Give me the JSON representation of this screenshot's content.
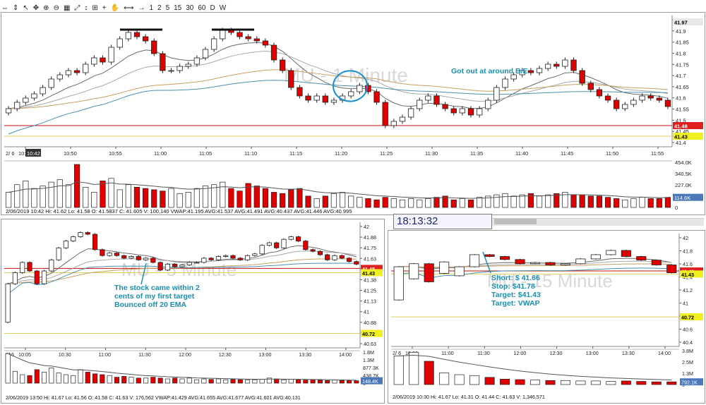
{
  "toolbar": {
    "items": [
      "⇔",
      "⇕",
      "↖",
      "✥",
      "⊕",
      "⊖",
      "▦",
      "⤢",
      "↕",
      "⊞",
      "+",
      "✋",
      "⟷",
      "→"
    ],
    "periods": [
      "1",
      "2",
      "5",
      "15",
      "30",
      "60",
      "D",
      "W"
    ]
  },
  "clock": "18:13:32",
  "colors": {
    "up": "#ffffff",
    "down": "#e00000",
    "ema_gray": "#8a8a8a",
    "ema_tan": "#c8a060",
    "vwap": "#4a90b0",
    "target_line": "#e0d060",
    "red_line": "#c01010",
    "annot": "#1a8fb0"
  },
  "panels": [
    {
      "id": "one-minute",
      "watermark": "MU - 1 Minute",
      "corner_label": "2/ 6",
      "time_badge": "10:42",
      "x_labels": [
        "10:45",
        "10:50",
        "10:55",
        "11:00",
        "11:05",
        "11:10",
        "11:15",
        "11:20",
        "11:25",
        "11:30",
        "11:35",
        "11:40",
        "11:45",
        "11:50",
        "11:55"
      ],
      "y_ticks": [
        "42.",
        "41.9",
        "41.85",
        "41.8",
        "41.75",
        "41.7",
        "41.65",
        "41.6",
        "41.55",
        "41.5",
        "41.45",
        "41.4"
      ],
      "price_badges": [
        {
          "text": "41.97",
          "value": 41.97,
          "bg": "#e8e8e8",
          "fg": "#000"
        },
        {
          "text": "41.48",
          "value": 41.48,
          "bg": "#e02020",
          "fg": "#fff"
        },
        {
          "text": "41.43",
          "value": 41.43,
          "bg": "#f0f020",
          "fg": "#000"
        }
      ],
      "vol_ticks": [
        "454.0K",
        "340.5K",
        "227.0K",
        "113.5K",
        "0"
      ],
      "vol_badge": "114.6K",
      "info": "2/06/2019 10:42   Hi: 41.62   Lo: 41.58   O: 41.5837   C: 41.605   V: 100,140  VWAP:41.195  AVG:41.537  AVG:41.491  AVG:40.437  AVG:41.446  AVG:40.995",
      "annotation": "Got out at around B/E"
    },
    {
      "id": "five-minute",
      "watermark": "MU - 5 Minute",
      "corner_label": "2/ 6",
      "x_labels": [
        "10:05",
        "10:30",
        "11:00",
        "11:30",
        "12:00",
        "12:30",
        "13:00",
        "13:30",
        "14:00"
      ],
      "y_ticks": [
        "42",
        "41.88",
        "41.75",
        "41.63",
        "41.5",
        "41.38",
        "41.25",
        "41.13",
        "41",
        "40.88",
        "40.75",
        "40.63"
      ],
      "price_badges": [
        {
          "text": "41.48",
          "value": 41.48,
          "bg": "#e02020",
          "fg": "#fff"
        },
        {
          "text": "41.43",
          "value": 41.43,
          "bg": "#f0f020",
          "fg": "#000"
        },
        {
          "text": "40.72",
          "value": 40.72,
          "bg": "#f0f020",
          "fg": "#000"
        }
      ],
      "vol_ticks": [
        "1.8M",
        "1.3M",
        "877.3K",
        "438.7K",
        "0"
      ],
      "vol_badge": "148.4K",
      "info": "2/06/2019 13:50   Hi: 41.67   Lo: 41.56   O: 41.58   C: 41.63   V: 176,562  VWAP:41.429  AVG:41.655  AVG:41.677  AVG:41.601  AVG:40.131",
      "annotation": [
        "The stock came within 2",
        "cents of my first target",
        "Bounced off 20 EMA"
      ]
    },
    {
      "id": "fifteen-minute",
      "watermark": "MU - 15 Minute",
      "corner_label": "2/ 6",
      "x_labels": [
        "10:30",
        "11:00",
        "11:30",
        "12:00",
        "12:30",
        "13:00",
        "13:30",
        "14:00"
      ],
      "y_ticks": [
        "42",
        "41.8",
        "41.6",
        "41.4",
        "41.2",
        "41",
        "40.8",
        "40.6",
        "40.4"
      ],
      "price_badges": [
        {
          "text": "41.48",
          "value": 41.48,
          "bg": "#e02020",
          "fg": "#fff"
        },
        {
          "text": "41.43",
          "value": 41.43,
          "bg": "#f0f020",
          "fg": "#000"
        },
        {
          "text": "40.72",
          "value": 40.72,
          "bg": "#f0f020",
          "fg": "#000"
        }
      ],
      "vol_ticks": [
        "3.8M",
        "2.5M",
        "1.3M",
        "0"
      ],
      "vol_badge": "792.1K",
      "info": "2/06/2019 10:30   Hi: 41.67   Lo: 41.31   O: 41.44   C: 41.63   V: 1,346,571",
      "annotation": [
        "Short: $ 41.66",
        "Stop: $41.78",
        "Target: $41.43",
        "Target: VWAP"
      ]
    }
  ],
  "chart_data": [
    {
      "type": "candlestick",
      "title": "MU - 1 Minute",
      "x": [
        "10:42",
        "10:43",
        "10:44",
        "10:45",
        "10:46",
        "10:47",
        "10:48",
        "10:49",
        "10:50",
        "10:51",
        "10:52",
        "10:53",
        "10:54",
        "10:55",
        "10:56",
        "10:57",
        "10:58",
        "10:59",
        "11:00",
        "11:01",
        "11:02",
        "11:03",
        "11:04",
        "11:05",
        "11:06",
        "11:07",
        "11:08",
        "11:09",
        "11:10",
        "11:11",
        "11:12",
        "11:13",
        "11:14",
        "11:15",
        "11:16",
        "11:17",
        "11:18",
        "11:19",
        "11:20",
        "11:21",
        "11:22",
        "11:23",
        "11:24",
        "11:25",
        "11:26",
        "11:27",
        "11:28",
        "11:29",
        "11:30",
        "11:31",
        "11:32",
        "11:33",
        "11:34",
        "11:35",
        "11:36",
        "11:37",
        "11:38",
        "11:39",
        "11:40",
        "11:41",
        "11:42",
        "11:43",
        "11:44",
        "11:45",
        "11:46",
        "11:47",
        "11:48",
        "11:49",
        "11:50",
        "11:51",
        "11:52",
        "11:53",
        "11:54",
        "11:55",
        "11:56",
        "11:57",
        "11:58",
        "11:59"
      ],
      "open": [
        41.54,
        41.56,
        41.59,
        41.61,
        41.63,
        41.66,
        41.7,
        41.72,
        41.74,
        41.73,
        41.77,
        41.8,
        41.78,
        41.85,
        41.89,
        41.92,
        41.9,
        41.88,
        41.82,
        41.74,
        41.74,
        41.76,
        41.77,
        41.8,
        41.84,
        41.89,
        41.93,
        41.92,
        41.9,
        41.89,
        41.88,
        41.86,
        41.79,
        41.74,
        41.66,
        41.62,
        41.6,
        41.62,
        41.59,
        41.6,
        41.62,
        41.64,
        41.67,
        41.64,
        41.59,
        41.48,
        41.5,
        41.52,
        41.56,
        41.6,
        41.62,
        41.58,
        41.56,
        41.54,
        41.56,
        41.53,
        41.56,
        41.6,
        41.66,
        41.7,
        41.72,
        41.74,
        41.73,
        41.75,
        41.77,
        41.76,
        41.79,
        41.74,
        41.68,
        41.65,
        41.62,
        41.6,
        41.56,
        41.58,
        41.6,
        41.62,
        41.61,
        41.6
      ],
      "close": [
        41.56,
        41.59,
        41.61,
        41.63,
        41.66,
        41.7,
        41.72,
        41.74,
        41.73,
        41.77,
        41.8,
        41.78,
        41.85,
        41.89,
        41.92,
        41.9,
        41.88,
        41.82,
        41.74,
        41.74,
        41.76,
        41.77,
        41.8,
        41.84,
        41.89,
        41.93,
        41.92,
        41.9,
        41.89,
        41.88,
        41.86,
        41.79,
        41.74,
        41.66,
        41.62,
        41.6,
        41.62,
        41.59,
        41.6,
        41.62,
        41.64,
        41.67,
        41.64,
        41.59,
        41.48,
        41.5,
        41.52,
        41.56,
        41.6,
        41.62,
        41.58,
        41.56,
        41.54,
        41.56,
        41.53,
        41.56,
        41.6,
        41.66,
        41.7,
        41.72,
        41.74,
        41.73,
        41.75,
        41.77,
        41.76,
        41.79,
        41.74,
        41.68,
        41.65,
        41.62,
        41.6,
        41.56,
        41.58,
        41.6,
        41.62,
        41.61,
        41.6,
        41.57
      ],
      "volume": [
        120,
        180,
        210,
        150,
        170,
        200,
        220,
        180,
        340,
        160,
        120,
        210,
        230,
        140,
        180,
        160,
        150,
        140,
        130,
        150,
        110,
        120,
        150,
        170,
        180,
        200,
        150,
        130,
        190,
        170,
        150,
        120,
        110,
        140,
        150,
        90,
        70,
        90,
        110,
        120,
        90,
        80,
        70,
        60,
        80,
        70,
        60,
        70,
        60,
        70,
        80,
        90,
        60,
        70,
        60,
        80,
        90,
        100,
        110,
        90,
        100,
        110,
        90,
        100,
        110,
        120,
        100,
        100,
        90,
        90,
        80,
        70,
        60,
        70,
        80,
        70,
        70,
        80
      ],
      "series": [],
      "ylim": [
        41.4,
        42.0
      ]
    },
    {
      "type": "candlestick",
      "title": "MU - 5 Minute",
      "x": [
        "10:05",
        "10:10",
        "10:15",
        "10:20",
        "10:25",
        "10:30",
        "10:35",
        "10:40",
        "10:45",
        "10:50",
        "10:55",
        "11:00",
        "11:05",
        "11:10",
        "11:15",
        "11:20",
        "11:25",
        "11:30",
        "11:35",
        "11:40",
        "11:45",
        "11:50",
        "11:55",
        "12:00",
        "12:05",
        "12:10",
        "12:15",
        "12:20",
        "12:25",
        "12:30",
        "12:35",
        "12:40",
        "12:45",
        "12:50",
        "12:55",
        "13:00",
        "13:05",
        "13:10",
        "13:15",
        "13:20",
        "13:25",
        "13:30",
        "13:35",
        "13:40",
        "13:45",
        "13:50",
        "13:55",
        "14:00",
        "14:05"
      ],
      "open": [
        40.85,
        41.3,
        41.43,
        41.55,
        41.45,
        41.3,
        41.45,
        41.58,
        41.72,
        41.8,
        41.85,
        41.9,
        41.88,
        41.7,
        41.63,
        41.66,
        41.63,
        41.6,
        41.62,
        41.58,
        41.6,
        41.55,
        41.46,
        41.53,
        41.5,
        41.52,
        41.55,
        41.55,
        41.6,
        41.58,
        41.62,
        41.63,
        41.6,
        41.58,
        41.63,
        41.65,
        41.75,
        41.78,
        41.72,
        41.82,
        41.85,
        41.8,
        41.7,
        41.68,
        41.64,
        41.58,
        41.63,
        41.6,
        41.56
      ],
      "close": [
        41.3,
        41.43,
        41.55,
        41.45,
        41.3,
        41.45,
        41.58,
        41.72,
        41.8,
        41.85,
        41.9,
        41.88,
        41.7,
        41.63,
        41.66,
        41.63,
        41.6,
        41.62,
        41.58,
        41.6,
        41.55,
        41.46,
        41.53,
        41.5,
        41.52,
        41.55,
        41.55,
        41.6,
        41.58,
        41.62,
        41.63,
        41.6,
        41.58,
        41.63,
        41.65,
        41.75,
        41.78,
        41.72,
        41.82,
        41.85,
        41.8,
        41.7,
        41.68,
        41.64,
        41.58,
        41.63,
        41.6,
        41.56,
        41.53
      ],
      "volume": [
        1.75,
        0.7,
        0.5,
        0.45,
        0.8,
        0.65,
        0.9,
        0.6,
        0.5,
        0.45,
        0.8,
        0.65,
        0.55,
        0.5,
        0.45,
        0.35,
        0.4,
        0.35,
        0.3,
        0.3,
        0.35,
        0.3,
        0.25,
        0.3,
        0.25,
        0.3,
        0.2,
        0.25,
        0.22,
        0.25,
        0.2,
        0.22,
        0.2,
        0.18,
        0.2,
        0.22,
        0.3,
        0.25,
        0.2,
        0.22,
        0.2,
        0.18,
        0.2,
        0.18,
        0.15,
        0.18,
        0.15,
        0.15,
        0.14
      ],
      "series": [],
      "ylim": [
        40.6,
        42.02
      ]
    },
    {
      "type": "candlestick",
      "title": "MU - 15 Minute",
      "x": [
        "09:45",
        "10:00",
        "10:15",
        "10:30",
        "10:45",
        "11:00",
        "11:15",
        "11:30",
        "11:45",
        "12:00",
        "12:15",
        "12:30",
        "12:45",
        "13:00",
        "13:15",
        "13:30",
        "13:45",
        "14:00",
        "14:15"
      ],
      "open": [
        41.0,
        41.35,
        41.6,
        41.44,
        41.4,
        41.55,
        41.75,
        41.72,
        41.67,
        41.6,
        41.62,
        41.58,
        41.6,
        41.68,
        41.75,
        41.82,
        41.72,
        41.66,
        41.58
      ],
      "close": [
        41.55,
        41.6,
        41.3,
        41.63,
        41.55,
        41.75,
        41.72,
        41.67,
        41.6,
        41.62,
        41.58,
        41.6,
        41.68,
        41.75,
        41.82,
        41.72,
        41.66,
        41.58,
        41.45
      ],
      "volume": [
        3.2,
        3.6,
        2.6,
        1.3,
        1.1,
        1.0,
        0.8,
        0.6,
        0.55,
        0.5,
        0.45,
        0.45,
        0.4,
        0.4,
        0.35,
        0.4,
        0.35,
        0.3,
        0.3
      ],
      "series": [],
      "ylim": [
        40.3,
        42.1
      ]
    }
  ]
}
